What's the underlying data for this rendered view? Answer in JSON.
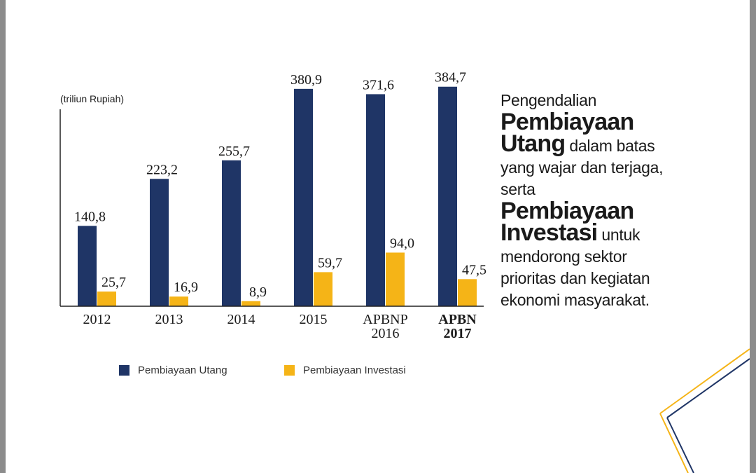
{
  "chart_data": {
    "type": "bar",
    "unit_label": "(triliun Rupiah)",
    "categories": [
      {
        "line1": "2012",
        "line2": "",
        "bold": false
      },
      {
        "line1": "2013",
        "line2": "",
        "bold": false
      },
      {
        "line1": "2014",
        "line2": "",
        "bold": false
      },
      {
        "line1": "2015",
        "line2": "",
        "bold": false
      },
      {
        "line1": "APBNP",
        "line2": "2016",
        "bold": false
      },
      {
        "line1": "APBN",
        "line2": "2017",
        "bold": true
      }
    ],
    "series": [
      {
        "name": "Pembiayaan Utang",
        "color": "#1f3566",
        "values": [
          140.8,
          223.2,
          255.7,
          380.9,
          371.6,
          384.7
        ],
        "labels": [
          "140,8",
          "223,2",
          "255,7",
          "380,9",
          "371,6",
          "384,7"
        ]
      },
      {
        "name": "Pembiayaan Investasi",
        "color": "#f5b417",
        "values": [
          25.7,
          16.9,
          8.9,
          59.7,
          94.0,
          47.5
        ],
        "labels": [
          "25,7",
          "16,9",
          "8,9",
          "59,7",
          "94,0",
          "47,5"
        ]
      }
    ],
    "ylim": [
      0,
      420
    ],
    "grid": false,
    "legend_position": "bottom"
  },
  "side_text": {
    "line1": "Pengendalian",
    "line2_bold": "Pembiayaan",
    "line3_bold": "Utang",
    "line3_rest": " dalam batas",
    "line4": "yang wajar dan terjaga,",
    "line5": "serta",
    "line6_bold": "Pembiayaan",
    "line7_bold": "Investasi",
    "line7_rest": " untuk",
    "line8": "mendorong sektor",
    "line9": "prioritas dan kegiatan",
    "line10": "ekonomi masyarakat."
  },
  "decoration": {
    "line_colors": [
      "#f5b417",
      "#1f3566"
    ]
  }
}
